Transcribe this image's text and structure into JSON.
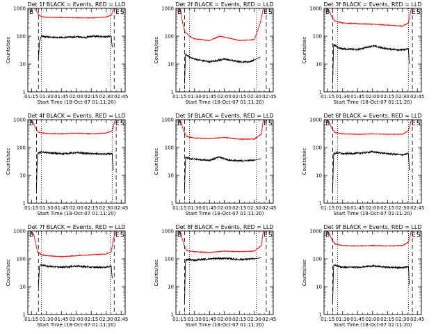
{
  "figure": {
    "background": "#ffffff",
    "axis_color": "#000000",
    "events_color": "#000000",
    "lld_color": "#ff0000"
  },
  "chart_data": [
    {
      "type": "line",
      "title": "Det 1f BLACK = Events, RED = LLD",
      "xlabel": "Start Time (18-Oct-07 01:11:20)",
      "ylabel": "Counts/sec",
      "x_ticks": [
        "01:15",
        "01:30",
        "01:45",
        "02:00",
        "02:15",
        "02:30",
        "02:45"
      ],
      "y_ticks": [
        "1",
        "10",
        "100",
        "1000"
      ],
      "yscale": "log",
      "ylim": [
        1,
        1000
      ],
      "xlim": [
        "01:11:20",
        "02:49:00"
      ],
      "markers": {
        "start": "B",
        "end": "E",
        "saa": "S"
      },
      "dashed_lines": [
        "01:22",
        "02:38"
      ],
      "dotted_lines": [
        "01:25",
        "02:34"
      ],
      "series": [
        {
          "name": "RED = LLD",
          "color": "#ff0000",
          "x": [
            "01:14",
            "01:18",
            "01:20",
            "01:22",
            "01:25",
            "01:30",
            "01:45",
            "02:00",
            "02:15",
            "02:30",
            "02:35",
            "02:37",
            "02:40"
          ],
          "y": [
            1000,
            1000,
            800,
            600,
            500,
            480,
            470,
            460,
            450,
            490,
            560,
            900,
            1000
          ]
        },
        {
          "name": "BLACK = Events",
          "color": "#000000",
          "x": [
            "01:22",
            "01:23",
            "01:25",
            "01:30",
            "01:45",
            "02:00",
            "02:10",
            "02:15",
            "02:30",
            "02:35",
            "02:36"
          ],
          "y": [
            15,
            60,
            100,
            95,
            90,
            95,
            90,
            100,
            95,
            100,
            40
          ]
        }
      ]
    },
    {
      "type": "line",
      "title": "Det 2f BLACK = Events, RED = LLD",
      "xlabel": "Start Time (18-Oct-07 01:11:20)",
      "ylabel": "Counts/sec",
      "x_ticks": [
        "01:15",
        "01:30",
        "01:45",
        "02:00",
        "02:15",
        "02:30",
        "02:45"
      ],
      "y_ticks": [
        "1",
        "10",
        "100",
        "1000"
      ],
      "yscale": "log",
      "ylim": [
        1,
        1000
      ],
      "xlim": [
        "01:11:20",
        "02:49:00"
      ],
      "markers": {
        "start": "B",
        "end": "E",
        "saa": "S"
      },
      "dashed_lines": [
        "01:20",
        "02:42"
      ],
      "dotted_lines": [
        "01:25",
        "02:32"
      ],
      "series": [
        {
          "name": "RED = LLD",
          "color": "#ff0000",
          "x": [
            "01:13",
            "01:16",
            "01:18",
            "01:20",
            "01:25",
            "01:30",
            "01:45",
            "01:55",
            "02:05",
            "02:15",
            "02:30",
            "02:36",
            "02:39"
          ],
          "y": [
            1000,
            900,
            300,
            150,
            100,
            80,
            70,
            100,
            85,
            70,
            75,
            300,
            1000
          ]
        },
        {
          "name": "BLACK = Events",
          "color": "#000000",
          "x": [
            "01:20",
            "01:21",
            "01:25",
            "01:30",
            "01:45",
            "02:00",
            "02:15",
            "02:25",
            "02:30",
            "02:36"
          ],
          "y": [
            2,
            22,
            18,
            15,
            12,
            15,
            12,
            12,
            14,
            18
          ]
        }
      ]
    },
    {
      "type": "line",
      "title": "Det 3f BLACK = Events, RED = LLD",
      "xlabel": "Start Time (18-Oct-07 01:11:20)",
      "ylabel": "Counts/sec",
      "x_ticks": [
        "01:15",
        "01:30",
        "01:45",
        "02:00",
        "02:15",
        "02:30",
        "02:45"
      ],
      "y_ticks": [
        "1",
        "10",
        "100",
        "1000"
      ],
      "yscale": "log",
      "ylim": [
        1,
        1000
      ],
      "xlim": [
        "01:11:20",
        "02:49:00"
      ],
      "markers": {
        "start": "B",
        "end": "E",
        "saa": "S"
      },
      "dashed_lines": [
        "01:20",
        "02:40"
      ],
      "dotted_lines": [
        "01:25",
        "02:36"
      ],
      "series": [
        {
          "name": "RED = LLD",
          "color": "#ff0000",
          "x": [
            "01:13",
            "01:16",
            "01:19",
            "01:22",
            "01:30",
            "01:45",
            "02:00",
            "02:15",
            "02:30",
            "02:36",
            "02:39"
          ],
          "y": [
            1000,
            900,
            500,
            350,
            300,
            280,
            270,
            250,
            230,
            300,
            1000
          ]
        },
        {
          "name": "BLACK = Events",
          "color": "#000000",
          "x": [
            "01:20",
            "01:21",
            "01:25",
            "01:30",
            "01:45",
            "02:00",
            "02:15",
            "02:30",
            "02:36",
            "02:37"
          ],
          "y": [
            2,
            50,
            40,
            35,
            33,
            45,
            35,
            32,
            35,
            10
          ]
        }
      ]
    },
    {
      "type": "line",
      "title": "Det 4f BLACK = Events, RED = LLD",
      "xlabel": "Start Time (18-Oct-07 01:11:20)",
      "ylabel": "Counts/sec",
      "x_ticks": [
        "01:15",
        "01:30",
        "01:45",
        "02:00",
        "02:15",
        "02:30",
        "02:45"
      ],
      "y_ticks": [
        "1",
        "10",
        "100",
        "1000"
      ],
      "yscale": "log",
      "ylim": [
        1,
        1000
      ],
      "xlim": [
        "01:11:20",
        "02:49:00"
      ],
      "markers": {
        "start": "B",
        "end": "E",
        "saa": "S"
      },
      "dashed_lines": [
        "01:20",
        "02:40"
      ],
      "dotted_lines": [
        "01:25",
        "02:36"
      ],
      "series": [
        {
          "name": "RED = LLD",
          "color": "#ff0000",
          "x": [
            "01:13",
            "01:16",
            "01:19",
            "01:22",
            "01:30",
            "01:45",
            "02:00",
            "02:15",
            "02:30",
            "02:36",
            "02:39"
          ],
          "y": [
            1000,
            900,
            500,
            350,
            320,
            310,
            330,
            310,
            330,
            400,
            1000
          ]
        },
        {
          "name": "BLACK = Events",
          "color": "#000000",
          "x": [
            "01:20",
            "01:21",
            "01:25",
            "01:30",
            "01:45",
            "02:00",
            "02:15",
            "02:30",
            "02:36",
            "02:37"
          ],
          "y": [
            3,
            60,
            70,
            65,
            60,
            65,
            60,
            58,
            60,
            15
          ]
        }
      ]
    },
    {
      "type": "line",
      "title": "Det 5f BLACK = Events, RED = LLD",
      "xlabel": "Start Time (18-Oct-07 01:11:20)",
      "ylabel": "Counts/sec",
      "x_ticks": [
        "01:15",
        "01:30",
        "01:45",
        "02:00",
        "02:15",
        "02:30",
        "02:45"
      ],
      "y_ticks": [
        "1",
        "10",
        "100",
        "1000"
      ],
      "yscale": "log",
      "ylim": [
        1,
        1000
      ],
      "xlim": [
        "01:11:20",
        "02:49:00"
      ],
      "markers": {
        "start": "B",
        "end": "E",
        "saa": "S"
      },
      "dashed_lines": [
        "01:20",
        "02:42"
      ],
      "dotted_lines": [
        "01:25",
        "02:32"
      ],
      "series": [
        {
          "name": "RED = LLD",
          "color": "#ff0000",
          "x": [
            "01:13",
            "01:16",
            "01:19",
            "01:22",
            "01:30",
            "01:45",
            "02:00",
            "02:15",
            "02:30",
            "02:37",
            "02:39"
          ],
          "y": [
            1000,
            900,
            400,
            250,
            220,
            210,
            230,
            200,
            200,
            300,
            1000
          ]
        },
        {
          "name": "BLACK = Events",
          "color": "#000000",
          "x": [
            "01:20",
            "01:21",
            "01:25",
            "01:30",
            "01:45",
            "01:55",
            "02:05",
            "02:15",
            "02:30",
            "02:37"
          ],
          "y": [
            3,
            45,
            40,
            38,
            35,
            45,
            35,
            33,
            35,
            40
          ]
        }
      ]
    },
    {
      "type": "line",
      "title": "Det 6f BLACK = Events, RED = LLD",
      "xlabel": "Start Time (18-Oct-07 01:11:20)",
      "ylabel": "Counts/sec",
      "x_ticks": [
        "01:15",
        "01:30",
        "01:45",
        "02:00",
        "02:15",
        "02:30",
        "02:45"
      ],
      "y_ticks": [
        "1",
        "10",
        "100",
        "1000"
      ],
      "yscale": "log",
      "ylim": [
        1,
        1000
      ],
      "xlim": [
        "01:11:20",
        "02:49:00"
      ],
      "markers": {
        "start": "B",
        "end": "E",
        "saa": "S"
      },
      "dashed_lines": [
        "01:20",
        "02:40"
      ],
      "dotted_lines": [
        "01:25",
        "02:36"
      ],
      "series": [
        {
          "name": "RED = LLD",
          "color": "#ff0000",
          "x": [
            "01:13",
            "01:16",
            "01:19",
            "01:22",
            "01:30",
            "01:45",
            "02:00",
            "02:15",
            "02:30",
            "02:36",
            "02:39"
          ],
          "y": [
            1000,
            900,
            500,
            350,
            310,
            300,
            310,
            300,
            300,
            400,
            1000
          ]
        },
        {
          "name": "BLACK = Events",
          "color": "#000000",
          "x": [
            "01:20",
            "01:21",
            "01:25",
            "01:30",
            "01:45",
            "02:00",
            "02:15",
            "02:30",
            "02:36",
            "02:37"
          ],
          "y": [
            3,
            60,
            65,
            60,
            62,
            70,
            60,
            55,
            60,
            15
          ]
        }
      ]
    },
    {
      "type": "line",
      "title": "Det 7f BLACK = Events, RED = LLD",
      "xlabel": "Start Time (18-Oct-07 01:11:20)",
      "ylabel": "Counts/sec",
      "x_ticks": [
        "01:15",
        "01:30",
        "01:45",
        "02:00",
        "02:15",
        "02:30",
        "02:45"
      ],
      "y_ticks": [
        "1",
        "10",
        "100",
        "1000"
      ],
      "yscale": "log",
      "ylim": [
        1,
        1000
      ],
      "xlim": [
        "01:11:20",
        "02:49:00"
      ],
      "markers": {
        "start": "B",
        "end": "E",
        "saa": "S"
      },
      "dashed_lines": [
        "01:22",
        "02:38"
      ],
      "dotted_lines": [
        "01:25",
        "02:34"
      ],
      "series": [
        {
          "name": "RED = LLD",
          "color": "#ff0000",
          "x": [
            "01:14",
            "01:17",
            "01:19",
            "01:21",
            "01:25",
            "01:30",
            "01:45",
            "02:00",
            "02:15",
            "02:30",
            "02:35",
            "02:37",
            "02:40"
          ],
          "y": [
            1000,
            800,
            400,
            180,
            140,
            130,
            120,
            130,
            140,
            150,
            180,
            500,
            1000
          ]
        },
        {
          "name": "BLACK = Events",
          "color": "#000000",
          "x": [
            "01:22",
            "01:23",
            "01:25",
            "01:30",
            "01:45",
            "02:00",
            "02:15",
            "02:30",
            "02:35",
            "02:36"
          ],
          "y": [
            10,
            55,
            60,
            55,
            50,
            55,
            50,
            50,
            55,
            20
          ]
        }
      ]
    },
    {
      "type": "line",
      "title": "Det 8f BLACK = Events, RED = LLD",
      "xlabel": "Start Time (18-Oct-07 01:11:20)",
      "ylabel": "Counts/sec",
      "x_ticks": [
        "01:15",
        "01:30",
        "01:45",
        "02:00",
        "02:15",
        "02:30",
        "02:45"
      ],
      "y_ticks": [
        "1",
        "10",
        "100",
        "1000"
      ],
      "yscale": "log",
      "ylim": [
        1,
        1000
      ],
      "xlim": [
        "01:11:20",
        "02:49:00"
      ],
      "markers": {
        "start": "B",
        "end": "E",
        "saa": "S"
      },
      "dashed_lines": [
        "01:20",
        "02:42"
      ],
      "dotted_lines": [
        "01:25",
        "02:32"
      ],
      "series": [
        {
          "name": "RED = LLD",
          "color": "#ff0000",
          "x": [
            "01:13",
            "01:16",
            "01:19",
            "01:22",
            "01:30",
            "01:45",
            "02:00",
            "02:15",
            "02:30",
            "02:37",
            "02:39"
          ],
          "y": [
            1000,
            900,
            350,
            200,
            180,
            170,
            190,
            180,
            190,
            300,
            1000
          ]
        },
        {
          "name": "BLACK = Events",
          "color": "#000000",
          "x": [
            "01:20",
            "01:21",
            "01:25",
            "01:30",
            "01:45",
            "02:00",
            "02:15",
            "02:30",
            "02:37"
          ],
          "y": [
            3,
            90,
            95,
            90,
            100,
            105,
            95,
            100,
            110
          ]
        }
      ]
    },
    {
      "type": "line",
      "title": "Det 9f BLACK = Events, RED = LLD",
      "xlabel": "Start Time (18-Oct-07 01:11:20)",
      "ylabel": "Counts/sec",
      "x_ticks": [
        "01:15",
        "01:30",
        "01:45",
        "02:00",
        "02:15",
        "02:30",
        "02:45"
      ],
      "y_ticks": [
        "1",
        "10",
        "100",
        "1000"
      ],
      "yscale": "log",
      "ylim": [
        1,
        1000
      ],
      "xlim": [
        "01:11:20",
        "02:49:00"
      ],
      "markers": {
        "start": "B",
        "end": "E",
        "saa": "S"
      },
      "dashed_lines": [
        "01:20",
        "02:40"
      ],
      "dotted_lines": [
        "01:25",
        "02:36"
      ],
      "series": [
        {
          "name": "RED = LLD",
          "color": "#ff0000",
          "x": [
            "01:13",
            "01:16",
            "01:19",
            "01:22",
            "01:30",
            "01:45",
            "02:00",
            "02:15",
            "02:30",
            "02:36",
            "02:39"
          ],
          "y": [
            1000,
            900,
            500,
            350,
            300,
            290,
            300,
            290,
            300,
            400,
            1000
          ]
        },
        {
          "name": "BLACK = Events",
          "color": "#000000",
          "x": [
            "01:20",
            "01:21",
            "01:25",
            "01:30",
            "01:45",
            "02:00",
            "02:15",
            "02:30",
            "02:36",
            "02:37"
          ],
          "y": [
            3,
            60,
            55,
            50,
            50,
            55,
            50,
            48,
            55,
            12
          ]
        }
      ]
    }
  ]
}
